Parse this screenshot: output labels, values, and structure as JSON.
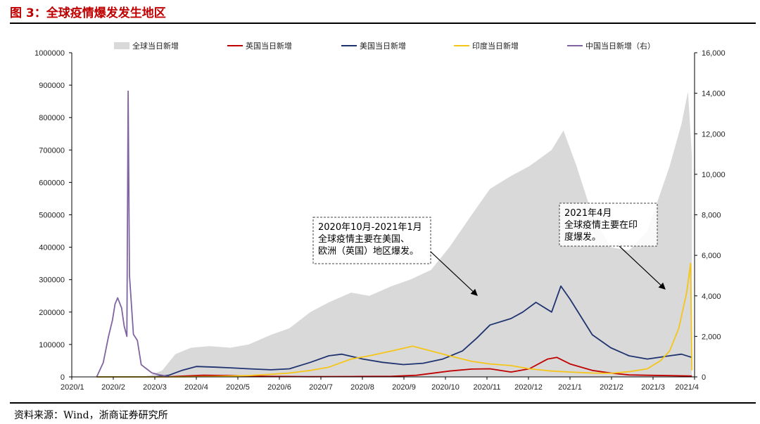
{
  "figure_title": "图 3：全球疫情爆发发生地区",
  "source": "资料来源：Wind，浙商证券研究所",
  "chart_data": {
    "type": "area",
    "x_ticks": [
      "2020/1",
      "2020/2",
      "2020/3",
      "2020/4",
      "2020/5",
      "2020/6",
      "2020/7",
      "2020/8",
      "2020/9",
      "2020/10",
      "2020/11",
      "2020/12",
      "2021/1",
      "2021/2",
      "2021/3",
      "2021/4"
    ],
    "y_left": {
      "ylim": [
        0,
        1000000
      ],
      "ticks": [
        "0",
        "100000",
        "200000",
        "300000",
        "400000",
        "500000",
        "600000",
        "700000",
        "800000",
        "900000",
        "1000000"
      ]
    },
    "y_right": {
      "ylim": [
        0,
        16000
      ],
      "ticks": [
        "0",
        "2,000",
        "4,000",
        "6,000",
        "8,000",
        "10,000",
        "12,000",
        "14,000",
        "16,000"
      ]
    },
    "series": [
      {
        "name": "全球当日新增",
        "kind": "area",
        "axis": "left",
        "color": "#d9d9d9",
        "x": [
          "2020-01-20",
          "2020-02-10",
          "2020-02-25",
          "2020-03-01",
          "2020-03-10",
          "2020-03-20",
          "2020-04-01",
          "2020-04-15",
          "2020-05-01",
          "2020-05-15",
          "2020-06-01",
          "2020-06-15",
          "2020-07-01",
          "2020-07-15",
          "2020-08-01",
          "2020-08-15",
          "2020-09-01",
          "2020-09-15",
          "2020-10-01",
          "2020-10-15",
          "2020-11-01",
          "2020-11-15",
          "2020-12-01",
          "2020-12-15",
          "2021-01-01",
          "2021-01-10",
          "2021-01-20",
          "2021-02-01",
          "2021-02-15",
          "2021-03-01",
          "2021-03-15",
          "2021-04-01",
          "2021-04-10",
          "2021-04-15",
          "2021-04-18"
        ],
        "values": [
          0,
          2000,
          2000,
          5000,
          20000,
          70000,
          90000,
          95000,
          90000,
          100000,
          130000,
          150000,
          200000,
          230000,
          260000,
          250000,
          280000,
          300000,
          330000,
          400000,
          500000,
          580000,
          620000,
          650000,
          700000,
          760000,
          650000,
          500000,
          400000,
          390000,
          450000,
          650000,
          780000,
          880000,
          680000
        ]
      },
      {
        "name": "英国当日新增",
        "kind": "line",
        "axis": "left",
        "color": "#c00000",
        "x": [
          "2020-01-20",
          "2020-03-15",
          "2020-04-10",
          "2020-05-01",
          "2020-06-01",
          "2020-07-01",
          "2020-08-01",
          "2020-09-01",
          "2020-09-20",
          "2020-10-15",
          "2020-11-01",
          "2020-11-15",
          "2020-12-01",
          "2020-12-15",
          "2020-12-29",
          "2021-01-05",
          "2021-01-15",
          "2021-02-01",
          "2021-02-15",
          "2021-03-01",
          "2021-03-15",
          "2021-04-01",
          "2021-04-18"
        ],
        "values": [
          0,
          500,
          5000,
          4000,
          1500,
          700,
          1000,
          2000,
          5000,
          18000,
          24000,
          25000,
          15000,
          25000,
          55000,
          60000,
          40000,
          20000,
          12000,
          6000,
          5000,
          4000,
          2500
        ]
      },
      {
        "name": "美国当日新增",
        "kind": "line",
        "axis": "left",
        "color": "#1f3370",
        "x": [
          "2020-01-20",
          "2020-02-20",
          "2020-03-05",
          "2020-03-15",
          "2020-03-25",
          "2020-04-05",
          "2020-04-20",
          "2020-05-01",
          "2020-05-15",
          "2020-06-01",
          "2020-06-15",
          "2020-07-01",
          "2020-07-15",
          "2020-07-25",
          "2020-08-10",
          "2020-08-25",
          "2020-09-10",
          "2020-09-25",
          "2020-10-10",
          "2020-10-25",
          "2020-11-05",
          "2020-11-15",
          "2020-12-01",
          "2020-12-10",
          "2020-12-20",
          "2021-01-01",
          "2021-01-08",
          "2021-01-15",
          "2021-02-01",
          "2021-02-15",
          "2021-03-01",
          "2021-03-15",
          "2021-04-01",
          "2021-04-10",
          "2021-04-18"
        ],
        "values": [
          0,
          0,
          500,
          5000,
          20000,
          32000,
          30000,
          28000,
          25000,
          22000,
          25000,
          45000,
          65000,
          70000,
          55000,
          45000,
          38000,
          42000,
          55000,
          80000,
          120000,
          160000,
          180000,
          200000,
          230000,
          200000,
          280000,
          240000,
          130000,
          90000,
          65000,
          55000,
          65000,
          70000,
          60000
        ]
      },
      {
        "name": "印度当日新增",
        "kind": "line",
        "axis": "left",
        "color": "#f5c518",
        "x": [
          "2020-01-20",
          "2020-03-20",
          "2020-04-15",
          "2020-05-01",
          "2020-05-15",
          "2020-06-01",
          "2020-06-15",
          "2020-07-01",
          "2020-07-15",
          "2020-08-01",
          "2020-08-15",
          "2020-09-01",
          "2020-09-17",
          "2020-10-01",
          "2020-10-15",
          "2020-11-01",
          "2020-11-15",
          "2020-12-01",
          "2020-12-15",
          "2021-01-01",
          "2021-01-15",
          "2021-02-01",
          "2021-02-15",
          "2021-03-01",
          "2021-03-15",
          "2021-03-25",
          "2021-04-01",
          "2021-04-08",
          "2021-04-14",
          "2021-04-17",
          "2021-04-18"
        ],
        "values": [
          0,
          0,
          1000,
          2500,
          4000,
          8000,
          12000,
          20000,
          30000,
          55000,
          65000,
          80000,
          95000,
          80000,
          65000,
          48000,
          40000,
          35000,
          25000,
          18000,
          15000,
          12000,
          11000,
          16000,
          25000,
          50000,
          80000,
          150000,
          260000,
          350000,
          20000
        ]
      },
      {
        "name": "中国当日新增（右）",
        "kind": "line",
        "axis": "right",
        "color": "#8064a2",
        "x": [
          "2020-01-20",
          "2020-01-25",
          "2020-01-29",
          "2020-02-01",
          "2020-02-03",
          "2020-02-05",
          "2020-02-08",
          "2020-02-10",
          "2020-02-12",
          "2020-02-13",
          "2020-02-14",
          "2020-02-17",
          "2020-02-20",
          "2020-02-23",
          "2020-02-27",
          "2020-03-02",
          "2020-03-08",
          "2020-03-15"
        ],
        "values": [
          0,
          700,
          2000,
          2800,
          3600,
          3900,
          3400,
          2500,
          2000,
          14100,
          5000,
          2100,
          1800,
          600,
          400,
          200,
          100,
          20
        ]
      }
    ],
    "annotations": [
      {
        "lines": [
          "2020年10月-2021年1月",
          "全球疫情主要在美国、",
          "欧洲（英国）地区爆发。"
        ]
      },
      {
        "lines": [
          "2021年4月",
          "全球疫情主要在印",
          "度爆发。"
        ]
      }
    ]
  }
}
